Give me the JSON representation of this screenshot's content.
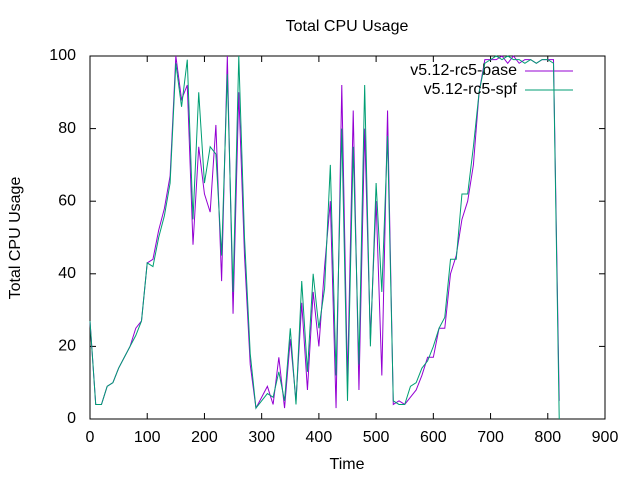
{
  "chart_data": {
    "type": "line",
    "title": "Total CPU Usage",
    "x_label": "Time",
    "y_label": "Total CPU Usage",
    "x": [
      0,
      10,
      20,
      30,
      40,
      50,
      60,
      70,
      80,
      90,
      100,
      110,
      120,
      130,
      140,
      150,
      160,
      170,
      180,
      190,
      200,
      210,
      220,
      230,
      240,
      250,
      260,
      270,
      280,
      290,
      300,
      310,
      320,
      330,
      340,
      350,
      360,
      370,
      380,
      390,
      400,
      410,
      420,
      430,
      440,
      450,
      460,
      470,
      480,
      490,
      500,
      510,
      520,
      530,
      540,
      550,
      560,
      570,
      580,
      590,
      600,
      610,
      620,
      630,
      640,
      650,
      660,
      670,
      680,
      690,
      700,
      710,
      720,
      730,
      740,
      750,
      760,
      770,
      780,
      790,
      800,
      810,
      820
    ],
    "series": [
      {
        "name": "v5.12-rc5-base",
        "color": "#9400d3",
        "values": [
          27,
          4,
          4,
          9,
          10,
          14,
          17,
          20,
          25,
          27,
          43,
          44,
          52,
          58,
          67,
          100,
          88,
          92,
          48,
          75,
          62,
          57,
          81,
          38,
          100,
          29,
          90,
          45,
          15,
          3,
          6,
          9,
          4,
          17,
          3,
          22,
          5,
          32,
          8,
          35,
          20,
          42,
          60,
          3,
          92,
          10,
          85,
          8,
          80,
          22,
          60,
          12,
          85,
          4,
          5,
          4,
          6,
          8,
          12,
          17,
          17,
          25,
          25,
          40,
          45,
          55,
          60,
          70,
          90,
          99,
          99,
          99,
          100,
          98,
          100,
          98,
          99,
          99,
          98,
          99,
          99,
          99,
          5
        ]
      },
      {
        "name": "v5.12-rc5-spf",
        "color": "#009e73",
        "values": [
          27,
          4,
          4,
          9,
          10,
          14,
          17,
          20,
          23,
          27,
          43,
          42,
          50,
          56,
          65,
          98,
          86,
          99,
          55,
          90,
          65,
          75,
          73,
          45,
          95,
          35,
          100,
          50,
          18,
          3,
          5,
          7,
          6,
          13,
          5,
          25,
          4,
          38,
          13,
          40,
          25,
          36,
          70,
          12,
          80,
          5,
          75,
          15,
          92,
          20,
          65,
          35,
          78,
          5,
          4,
          4,
          9,
          10,
          14,
          16,
          20,
          25,
          28,
          44,
          44,
          62,
          62,
          75,
          90,
          98,
          99,
          100,
          99,
          100,
          99,
          99,
          98,
          99,
          98,
          99,
          99,
          98,
          0
        ]
      }
    ],
    "xlim": [
      0,
      900
    ],
    "xticks": [
      0,
      100,
      200,
      300,
      400,
      500,
      600,
      700,
      800,
      900
    ],
    "ylim": [
      0,
      100
    ],
    "yticks": [
      0,
      20,
      40,
      60,
      80,
      100
    ],
    "legend": "top-right"
  }
}
